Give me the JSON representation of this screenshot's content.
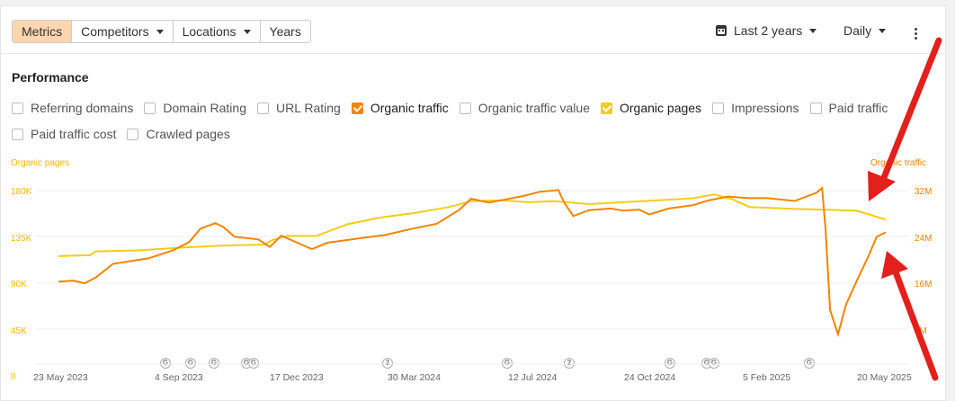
{
  "toolbar": {
    "tabs": [
      "Metrics",
      "Competitors",
      "Locations",
      "Years"
    ],
    "date_range": "Last 2 years",
    "granularity": "Daily"
  },
  "performance": {
    "title": "Performance",
    "checkboxes_row1": [
      {
        "label": "Referring domains",
        "checked": false
      },
      {
        "label": "Domain Rating",
        "checked": false
      },
      {
        "label": "URL Rating",
        "checked": false
      },
      {
        "label": "Organic traffic",
        "checked": true,
        "color": "#f28500"
      },
      {
        "label": "Organic traffic value",
        "checked": false
      },
      {
        "label": "Organic pages",
        "checked": true,
        "color": "#f6cc15"
      },
      {
        "label": "Impressions",
        "checked": false
      },
      {
        "label": "Paid traffic",
        "checked": false
      }
    ],
    "checkboxes_row2": [
      {
        "label": "Paid traffic cost",
        "checked": false
      },
      {
        "label": "Crawled pages",
        "checked": false
      }
    ]
  },
  "chart_data": {
    "type": "line",
    "left_axis_title": "Organic pages",
    "right_axis_title": "Organic traffic",
    "left_ticks": [
      "180K",
      "135K",
      "90K",
      "45K",
      "0"
    ],
    "right_ticks": [
      "32M",
      "24M",
      "16M",
      "8M"
    ],
    "x_ticks": [
      "23 May 2023",
      "4 Sep 2023",
      "17 Dec 2023",
      "30 Mar 2024",
      "12 Jul 2024",
      "24 Oct 2024",
      "5 Feb 2025",
      "20 May 2025"
    ],
    "grid": true,
    "annotations": [
      "G",
      "G",
      "G",
      "G",
      "G",
      "2",
      "G",
      "2",
      "G",
      "G",
      "G",
      "G"
    ],
    "series": [
      {
        "name": "Organic pages",
        "color": "#f6cc15",
        "axis": "left",
        "points": [
          [
            "2023-05-23",
            112000
          ],
          [
            "2023-06-20",
            113000
          ],
          [
            "2023-06-25",
            117000
          ],
          [
            "2023-08-01",
            118000
          ],
          [
            "2023-09-10",
            121000
          ],
          [
            "2023-10-15",
            123000
          ],
          [
            "2023-11-20",
            124000
          ],
          [
            "2023-11-28",
            129000
          ],
          [
            "2023-12-10",
            133000
          ],
          [
            "2024-01-05",
            133000
          ],
          [
            "2024-02-01",
            145000
          ],
          [
            "2024-03-01",
            152000
          ],
          [
            "2024-04-01",
            157000
          ],
          [
            "2024-05-01",
            163000
          ],
          [
            "2024-05-20",
            169000
          ],
          [
            "2024-06-15",
            170000
          ],
          [
            "2024-07-10",
            168000
          ],
          [
            "2024-08-01",
            169000
          ],
          [
            "2024-09-01",
            166000
          ],
          [
            "2024-10-01",
            168000
          ],
          [
            "2024-11-01",
            170000
          ],
          [
            "2024-12-01",
            172000
          ],
          [
            "2024-12-20",
            176000
          ],
          [
            "2025-01-05",
            171000
          ],
          [
            "2025-01-20",
            163000
          ],
          [
            "2025-03-01",
            161000
          ],
          [
            "2025-04-01",
            160000
          ],
          [
            "2025-04-25",
            159000
          ],
          [
            "2025-05-20",
            150000
          ]
        ]
      },
      {
        "name": "Organic traffic",
        "color": "#f28500",
        "axis": "right",
        "points": [
          [
            "2023-05-23",
            15200000
          ],
          [
            "2023-06-05",
            15400000
          ],
          [
            "2023-06-15",
            14900000
          ],
          [
            "2023-06-25",
            16000000
          ],
          [
            "2023-07-10",
            18500000
          ],
          [
            "2023-08-10",
            19500000
          ],
          [
            "2023-09-01",
            21000000
          ],
          [
            "2023-09-15",
            22500000
          ],
          [
            "2023-09-25",
            25000000
          ],
          [
            "2023-10-08",
            26000000
          ],
          [
            "2023-10-15",
            25300000
          ],
          [
            "2023-10-25",
            23500000
          ],
          [
            "2023-11-15",
            23000000
          ],
          [
            "2023-11-25",
            21600000
          ],
          [
            "2023-12-05",
            23700000
          ],
          [
            "2024-01-01",
            21200000
          ],
          [
            "2024-01-15",
            22400000
          ],
          [
            "2024-02-15",
            23300000
          ],
          [
            "2024-03-05",
            23800000
          ],
          [
            "2024-03-30",
            25000000
          ],
          [
            "2024-04-20",
            25900000
          ],
          [
            "2024-05-10",
            28500000
          ],
          [
            "2024-05-20",
            30500000
          ],
          [
            "2024-06-05",
            29800000
          ],
          [
            "2024-06-20",
            30400000
          ],
          [
            "2024-07-05",
            31000000
          ],
          [
            "2024-07-20",
            31800000
          ],
          [
            "2024-08-05",
            32100000
          ],
          [
            "2024-08-10",
            29800000
          ],
          [
            "2024-08-18",
            27300000
          ],
          [
            "2024-09-01",
            28400000
          ],
          [
            "2024-09-20",
            28700000
          ],
          [
            "2024-10-01",
            28300000
          ],
          [
            "2024-10-15",
            28500000
          ],
          [
            "2024-10-24",
            27600000
          ],
          [
            "2024-11-10",
            28700000
          ],
          [
            "2024-12-01",
            29300000
          ],
          [
            "2024-12-15",
            30200000
          ],
          [
            "2025-01-01",
            30900000
          ],
          [
            "2025-01-20",
            30600000
          ],
          [
            "2025-02-05",
            30600000
          ],
          [
            "2025-03-01",
            30100000
          ],
          [
            "2025-03-20",
            31600000
          ],
          [
            "2025-03-25",
            32500000
          ],
          [
            "2025-03-28",
            25000000
          ],
          [
            "2025-04-01",
            10000000
          ],
          [
            "2025-04-08",
            5500000
          ],
          [
            "2025-04-15",
            11000000
          ],
          [
            "2025-04-25",
            15600000
          ],
          [
            "2025-05-05",
            20000000
          ],
          [
            "2025-05-12",
            23500000
          ],
          [
            "2025-05-20",
            24300000
          ]
        ]
      }
    ]
  }
}
